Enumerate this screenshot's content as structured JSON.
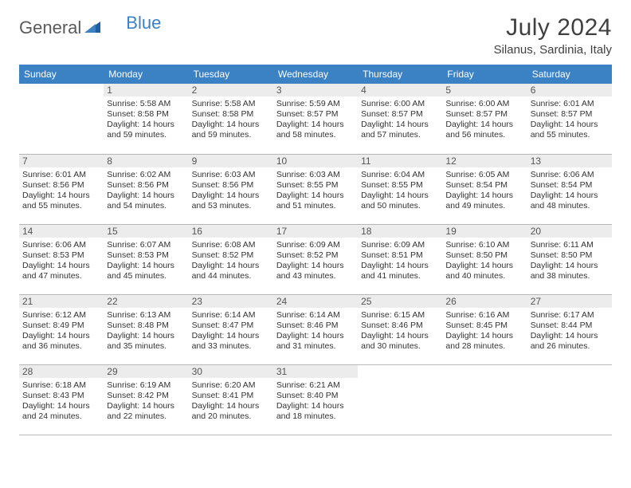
{
  "logo": {
    "text1": "General",
    "text2": "Blue"
  },
  "title": "July 2024",
  "location": "Silanus, Sardinia, Italy",
  "colors": {
    "header_bg": "#3b82c4",
    "header_text": "#ffffff",
    "daynum_bg": "#ececec",
    "border": "#b8b8b8",
    "logo_gray": "#5a5a5a",
    "logo_blue": "#3b82c4"
  },
  "weekdays": [
    "Sunday",
    "Monday",
    "Tuesday",
    "Wednesday",
    "Thursday",
    "Friday",
    "Saturday"
  ],
  "cells": [
    {
      "day": "",
      "sunrise": "",
      "sunset": "",
      "dl1": "",
      "dl2": ""
    },
    {
      "day": "1",
      "sunrise": "Sunrise: 5:58 AM",
      "sunset": "Sunset: 8:58 PM",
      "dl1": "Daylight: 14 hours",
      "dl2": "and 59 minutes."
    },
    {
      "day": "2",
      "sunrise": "Sunrise: 5:58 AM",
      "sunset": "Sunset: 8:58 PM",
      "dl1": "Daylight: 14 hours",
      "dl2": "and 59 minutes."
    },
    {
      "day": "3",
      "sunrise": "Sunrise: 5:59 AM",
      "sunset": "Sunset: 8:57 PM",
      "dl1": "Daylight: 14 hours",
      "dl2": "and 58 minutes."
    },
    {
      "day": "4",
      "sunrise": "Sunrise: 6:00 AM",
      "sunset": "Sunset: 8:57 PM",
      "dl1": "Daylight: 14 hours",
      "dl2": "and 57 minutes."
    },
    {
      "day": "5",
      "sunrise": "Sunrise: 6:00 AM",
      "sunset": "Sunset: 8:57 PM",
      "dl1": "Daylight: 14 hours",
      "dl2": "and 56 minutes."
    },
    {
      "day": "6",
      "sunrise": "Sunrise: 6:01 AM",
      "sunset": "Sunset: 8:57 PM",
      "dl1": "Daylight: 14 hours",
      "dl2": "and 55 minutes."
    },
    {
      "day": "7",
      "sunrise": "Sunrise: 6:01 AM",
      "sunset": "Sunset: 8:56 PM",
      "dl1": "Daylight: 14 hours",
      "dl2": "and 55 minutes."
    },
    {
      "day": "8",
      "sunrise": "Sunrise: 6:02 AM",
      "sunset": "Sunset: 8:56 PM",
      "dl1": "Daylight: 14 hours",
      "dl2": "and 54 minutes."
    },
    {
      "day": "9",
      "sunrise": "Sunrise: 6:03 AM",
      "sunset": "Sunset: 8:56 PM",
      "dl1": "Daylight: 14 hours",
      "dl2": "and 53 minutes."
    },
    {
      "day": "10",
      "sunrise": "Sunrise: 6:03 AM",
      "sunset": "Sunset: 8:55 PM",
      "dl1": "Daylight: 14 hours",
      "dl2": "and 51 minutes."
    },
    {
      "day": "11",
      "sunrise": "Sunrise: 6:04 AM",
      "sunset": "Sunset: 8:55 PM",
      "dl1": "Daylight: 14 hours",
      "dl2": "and 50 minutes."
    },
    {
      "day": "12",
      "sunrise": "Sunrise: 6:05 AM",
      "sunset": "Sunset: 8:54 PM",
      "dl1": "Daylight: 14 hours",
      "dl2": "and 49 minutes."
    },
    {
      "day": "13",
      "sunrise": "Sunrise: 6:06 AM",
      "sunset": "Sunset: 8:54 PM",
      "dl1": "Daylight: 14 hours",
      "dl2": "and 48 minutes."
    },
    {
      "day": "14",
      "sunrise": "Sunrise: 6:06 AM",
      "sunset": "Sunset: 8:53 PM",
      "dl1": "Daylight: 14 hours",
      "dl2": "and 47 minutes."
    },
    {
      "day": "15",
      "sunrise": "Sunrise: 6:07 AM",
      "sunset": "Sunset: 8:53 PM",
      "dl1": "Daylight: 14 hours",
      "dl2": "and 45 minutes."
    },
    {
      "day": "16",
      "sunrise": "Sunrise: 6:08 AM",
      "sunset": "Sunset: 8:52 PM",
      "dl1": "Daylight: 14 hours",
      "dl2": "and 44 minutes."
    },
    {
      "day": "17",
      "sunrise": "Sunrise: 6:09 AM",
      "sunset": "Sunset: 8:52 PM",
      "dl1": "Daylight: 14 hours",
      "dl2": "and 43 minutes."
    },
    {
      "day": "18",
      "sunrise": "Sunrise: 6:09 AM",
      "sunset": "Sunset: 8:51 PM",
      "dl1": "Daylight: 14 hours",
      "dl2": "and 41 minutes."
    },
    {
      "day": "19",
      "sunrise": "Sunrise: 6:10 AM",
      "sunset": "Sunset: 8:50 PM",
      "dl1": "Daylight: 14 hours",
      "dl2": "and 40 minutes."
    },
    {
      "day": "20",
      "sunrise": "Sunrise: 6:11 AM",
      "sunset": "Sunset: 8:50 PM",
      "dl1": "Daylight: 14 hours",
      "dl2": "and 38 minutes."
    },
    {
      "day": "21",
      "sunrise": "Sunrise: 6:12 AM",
      "sunset": "Sunset: 8:49 PM",
      "dl1": "Daylight: 14 hours",
      "dl2": "and 36 minutes."
    },
    {
      "day": "22",
      "sunrise": "Sunrise: 6:13 AM",
      "sunset": "Sunset: 8:48 PM",
      "dl1": "Daylight: 14 hours",
      "dl2": "and 35 minutes."
    },
    {
      "day": "23",
      "sunrise": "Sunrise: 6:14 AM",
      "sunset": "Sunset: 8:47 PM",
      "dl1": "Daylight: 14 hours",
      "dl2": "and 33 minutes."
    },
    {
      "day": "24",
      "sunrise": "Sunrise: 6:14 AM",
      "sunset": "Sunset: 8:46 PM",
      "dl1": "Daylight: 14 hours",
      "dl2": "and 31 minutes."
    },
    {
      "day": "25",
      "sunrise": "Sunrise: 6:15 AM",
      "sunset": "Sunset: 8:46 PM",
      "dl1": "Daylight: 14 hours",
      "dl2": "and 30 minutes."
    },
    {
      "day": "26",
      "sunrise": "Sunrise: 6:16 AM",
      "sunset": "Sunset: 8:45 PM",
      "dl1": "Daylight: 14 hours",
      "dl2": "and 28 minutes."
    },
    {
      "day": "27",
      "sunrise": "Sunrise: 6:17 AM",
      "sunset": "Sunset: 8:44 PM",
      "dl1": "Daylight: 14 hours",
      "dl2": "and 26 minutes."
    },
    {
      "day": "28",
      "sunrise": "Sunrise: 6:18 AM",
      "sunset": "Sunset: 8:43 PM",
      "dl1": "Daylight: 14 hours",
      "dl2": "and 24 minutes."
    },
    {
      "day": "29",
      "sunrise": "Sunrise: 6:19 AM",
      "sunset": "Sunset: 8:42 PM",
      "dl1": "Daylight: 14 hours",
      "dl2": "and 22 minutes."
    },
    {
      "day": "30",
      "sunrise": "Sunrise: 6:20 AM",
      "sunset": "Sunset: 8:41 PM",
      "dl1": "Daylight: 14 hours",
      "dl2": "and 20 minutes."
    },
    {
      "day": "31",
      "sunrise": "Sunrise: 6:21 AM",
      "sunset": "Sunset: 8:40 PM",
      "dl1": "Daylight: 14 hours",
      "dl2": "and 18 minutes."
    },
    {
      "day": "",
      "sunrise": "",
      "sunset": "",
      "dl1": "",
      "dl2": ""
    },
    {
      "day": "",
      "sunrise": "",
      "sunset": "",
      "dl1": "",
      "dl2": ""
    },
    {
      "day": "",
      "sunrise": "",
      "sunset": "",
      "dl1": "",
      "dl2": ""
    }
  ]
}
